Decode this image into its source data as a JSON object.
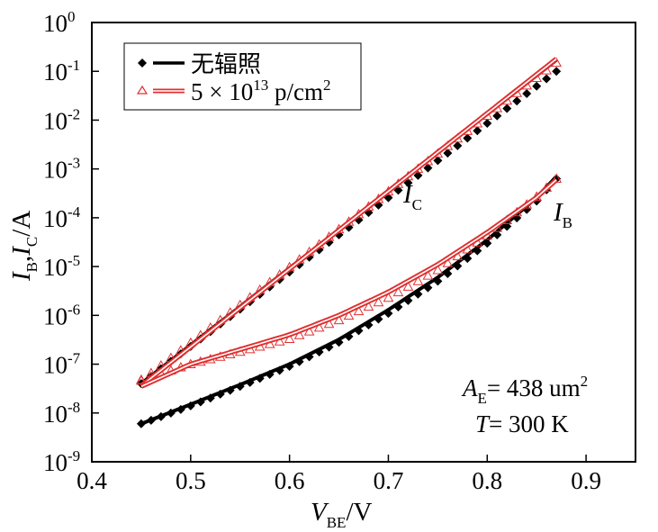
{
  "chart_data": {
    "type": "scatter",
    "yscale": "log",
    "xlim": [
      0.4,
      0.95
    ],
    "ylim": [
      1e-09,
      1
    ],
    "x_ticks": [
      "0.4",
      "0.5",
      "0.6",
      "0.7",
      "0.8",
      "0.9"
    ],
    "x_tick_values": [
      0.4,
      0.5,
      0.6,
      0.7,
      0.8,
      0.9
    ],
    "y_ticks": [
      {
        "base": "10",
        "exp": "0",
        "value": 1
      },
      {
        "base": "10",
        "exp": "-1",
        "value": 0.1
      },
      {
        "base": "10",
        "exp": "-2",
        "value": 0.01
      },
      {
        "base": "10",
        "exp": "-3",
        "value": 0.001
      },
      {
        "base": "10",
        "exp": "-4",
        "value": 0.0001
      },
      {
        "base": "10",
        "exp": "-5",
        "value": 1e-05
      },
      {
        "base": "10",
        "exp": "-6",
        "value": 1e-06
      },
      {
        "base": "10",
        "exp": "-7",
        "value": 1e-07
      },
      {
        "base": "10",
        "exp": "-8",
        "value": 1e-08
      },
      {
        "base": "10",
        "exp": "-9",
        "value": 1e-09
      }
    ],
    "xlabel": {
      "main": "V",
      "sub": "BE",
      "rest": "/V"
    },
    "ylabel": {
      "i1": "I",
      "s1": "B",
      "sep": ",",
      "i2": "I",
      "s2": "C",
      "rest": "/A"
    },
    "legend": {
      "placement": "top-left",
      "entries": [
        {
          "label": "无辐照"
        },
        {
          "pre": "5 × 10",
          "exp": "13",
          "post": " p/cm",
          "exp2": "2"
        }
      ]
    },
    "annotations": [
      {
        "main": "I",
        "sub": "C",
        "x": 0.715,
        "y": 0.0002
      },
      {
        "main": "I",
        "sub": "B",
        "x": 0.87,
        "y": 0.0001
      }
    ],
    "info": {
      "line1": {
        "main": "A",
        "sub": "E",
        "rest": "= 438 um",
        "exp": "2"
      },
      "line2": {
        "main": "T",
        "rest": "= 300 K"
      }
    },
    "colors": {
      "unirradiated": "#000000",
      "irradiated": "#e03030"
    },
    "series": [
      {
        "group": "unirradiated",
        "quantity": "IC",
        "style": "line",
        "x": [
          0.45,
          0.87
        ],
        "y": [
          4e-08,
          0.17
        ]
      },
      {
        "group": "unirradiated",
        "quantity": "IC",
        "style": "markers",
        "x": [
          0.45,
          0.87
        ],
        "y": [
          4e-08,
          0.1
        ]
      },
      {
        "group": "irradiated",
        "quantity": "IC",
        "style": "line",
        "x": [
          0.45,
          0.87
        ],
        "y": [
          3.6e-08,
          0.18
        ]
      },
      {
        "group": "irradiated",
        "quantity": "IC",
        "style": "markers",
        "x": [
          0.45,
          0.87
        ],
        "y": [
          4.6e-08,
          0.15
        ]
      },
      {
        "group": "unirradiated",
        "quantity": "IB",
        "style": "line",
        "x": [
          0.45,
          0.5,
          0.55,
          0.6,
          0.65,
          0.7,
          0.75,
          0.8,
          0.85,
          0.87
        ],
        "y": [
          6e-09,
          1.5e-08,
          3.8e-08,
          1e-07,
          3.2e-07,
          1.3e-06,
          6e-06,
          3.5e-05,
          0.00026,
          0.0007
        ]
      },
      {
        "group": "unirradiated",
        "quantity": "IB",
        "style": "markers",
        "x": [
          0.45,
          0.5,
          0.55,
          0.6,
          0.65,
          0.7,
          0.75,
          0.8,
          0.85,
          0.87
        ],
        "y": [
          6e-09,
          1.4e-08,
          3.5e-08,
          9e-08,
          2.8e-07,
          1.1e-06,
          5e-06,
          3e-05,
          0.00022,
          0.00063
        ]
      },
      {
        "group": "irradiated",
        "quantity": "IB",
        "style": "line",
        "x": [
          0.45,
          0.5,
          0.55,
          0.6,
          0.65,
          0.7,
          0.75,
          0.8,
          0.85,
          0.87
        ],
        "y": [
          3.5e-08,
          1e-07,
          2e-07,
          4e-07,
          1e-06,
          3e-06,
          1.1e-05,
          5e-05,
          0.00026,
          0.0006
        ]
      },
      {
        "group": "irradiated",
        "quantity": "IB",
        "style": "markers",
        "x": [
          0.45,
          0.5,
          0.55,
          0.6,
          0.65,
          0.7,
          0.75,
          0.8,
          0.85,
          0.87
        ],
        "y": [
          4.8e-08,
          1e-07,
          1.8e-07,
          3.3e-07,
          8e-07,
          2.3e-06,
          8.5e-06,
          4.3e-05,
          0.00027,
          0.00063
        ]
      }
    ]
  }
}
